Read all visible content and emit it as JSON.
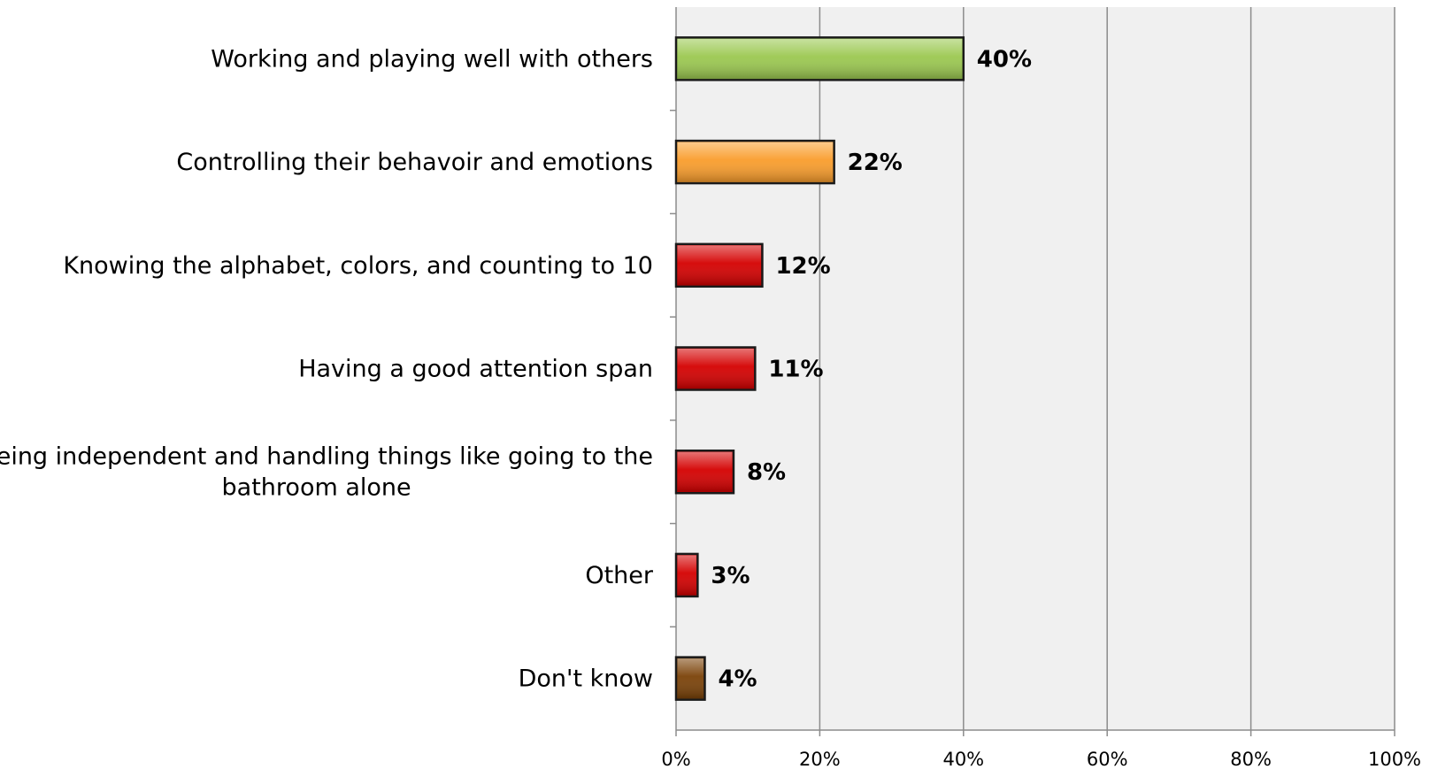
{
  "chart_data": {
    "type": "bar",
    "orientation": "horizontal",
    "title": "",
    "xlabel": "",
    "ylabel": "",
    "categories": [
      [
        "Working and playing well with others"
      ],
      [
        "Controlling their behavoir and emotions"
      ],
      [
        "Knowing the alphabet, colors, and counting to 10"
      ],
      [
        "Having a good attention span"
      ],
      [
        "Being independent and handling things like going to the",
        "bathroom alone"
      ],
      [
        "Other"
      ],
      [
        "Don't know"
      ]
    ],
    "values": [
      40,
      22,
      12,
      11,
      8,
      3,
      4
    ],
    "value_labels": [
      "40%",
      "22%",
      "12%",
      "11%",
      "8%",
      "3%",
      "4%"
    ],
    "bar_colors": [
      "#9bc850",
      "#f99d2c",
      "#d40000",
      "#d40000",
      "#d40000",
      "#d40000",
      "#7a4208"
    ],
    "xlim": [
      0,
      100
    ],
    "x_ticks": [
      0,
      20,
      40,
      60,
      80,
      100
    ],
    "x_tick_labels": [
      "0%",
      "20%",
      "40%",
      "60%",
      "80%",
      "100%"
    ],
    "grid": true,
    "legend": "none",
    "plot_background": "#f0f0f0",
    "gridline_color": "#8c8c8c"
  }
}
